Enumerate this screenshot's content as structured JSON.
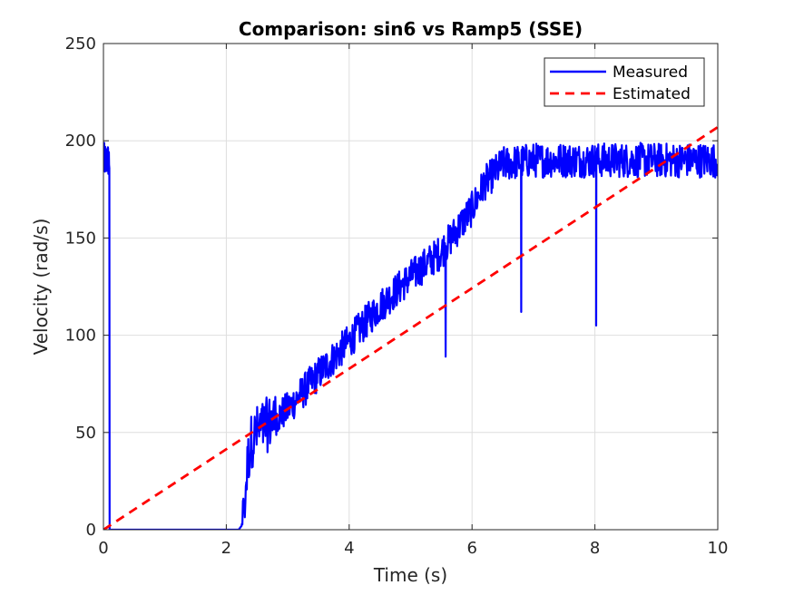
{
  "chart_data": {
    "type": "line",
    "title": "Comparison: sin6 vs Ramp5 (SSE)",
    "xlabel": "Time (s)",
    "ylabel": "Velocity (rad/s)",
    "xlim": [
      0,
      10
    ],
    "ylim": [
      0,
      250
    ],
    "xticks": [
      0,
      2,
      4,
      6,
      8,
      10
    ],
    "yticks": [
      0,
      50,
      100,
      150,
      200,
      250
    ],
    "grid": true,
    "legend_position": "top-right",
    "series": [
      {
        "name": "Measured",
        "color": "#0000ff",
        "style": "solid",
        "noise_amplitude": 9,
        "x": [
          0,
          0.1,
          0.1,
          0.11,
          1.8,
          2.2,
          2.25,
          2.3,
          2.35,
          2.4,
          2.5,
          3.0,
          3.5,
          4.0,
          4.5,
          5.0,
          5.5,
          6.0,
          6.2,
          6.5,
          7.0,
          7.5,
          8.0,
          8.5,
          9.0,
          9.5,
          10.0
        ],
        "y": [
          190,
          190,
          0,
          0,
          0,
          0,
          2,
          15,
          35,
          45,
          50,
          62,
          80,
          97,
          115,
          130,
          143,
          165,
          178,
          188,
          190,
          190,
          190,
          190,
          190,
          190,
          190
        ],
        "dips": [
          {
            "x": 5.57,
            "y": 89
          },
          {
            "x": 6.8,
            "y": 112
          },
          {
            "x": 8.02,
            "y": 105
          }
        ]
      },
      {
        "name": "Estimated",
        "color": "#ff0000",
        "style": "dashed",
        "x": [
          0,
          10
        ],
        "y": [
          0,
          207
        ]
      }
    ]
  }
}
